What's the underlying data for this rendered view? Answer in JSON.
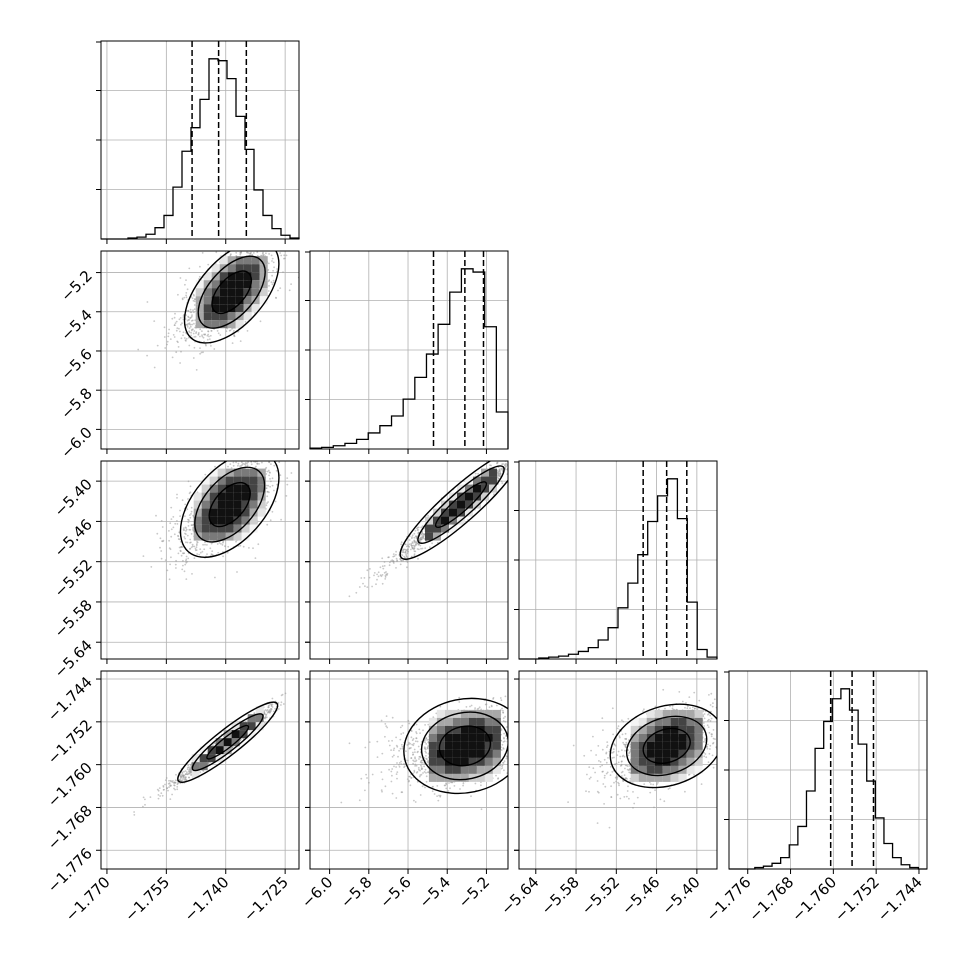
{
  "chart_data": {
    "type": "corner",
    "title": "",
    "grid": true,
    "colors": {
      "line": "#000000",
      "grid": "#b0b0b0",
      "scatter": "#9a9a9a"
    },
    "parameters": [
      {
        "index": 0,
        "range": [
          -1.7715,
          -1.7215
        ],
        "ticks": [
          -1.77,
          -1.755,
          -1.74,
          -1.725
        ],
        "tick_labels": [
          "−1.770",
          "−1.755",
          "−1.740",
          "−1.725"
        ],
        "quantiles": [
          -1.7485,
          -1.7418,
          -1.7348
        ],
        "histogram": [
          0,
          0,
          0,
          1,
          2,
          5,
          12,
          25,
          55,
          93,
          118,
          148,
          191,
          189,
          170,
          130,
          95,
          52,
          25,
          11,
          4,
          1
        ]
      },
      {
        "index": 1,
        "range": [
          -6.1,
          -5.09
        ],
        "ticks": [
          -6.0,
          -5.8,
          -5.6,
          -5.4,
          -5.2
        ],
        "tick_labels": [
          "−6.0",
          "−5.8",
          "−5.6",
          "−5.4",
          "−5.2"
        ],
        "quantiles": [
          -5.47,
          -5.31,
          -5.215
        ],
        "histogram": [
          1,
          2,
          4,
          7,
          12,
          20,
          29,
          41,
          62,
          89,
          118,
          155,
          195,
          224,
          220,
          152,
          46
        ]
      },
      {
        "index": 2,
        "range": [
          -5.665,
          -5.37
        ],
        "ticks": [
          -5.64,
          -5.58,
          -5.52,
          -5.46,
          -5.4
        ],
        "tick_labels": [
          "−5.64",
          "−5.58",
          "−5.52",
          "−5.46",
          "−5.40"
        ],
        "quantiles": [
          -5.48,
          -5.445,
          -5.415
        ],
        "histogram": [
          0,
          0,
          1,
          2,
          3,
          5,
          8,
          12,
          20,
          33,
          54,
          80,
          110,
          145,
          172,
          190,
          148,
          60,
          10,
          2
        ]
      },
      {
        "index": 3,
        "range": [
          -1.7795,
          -1.7425
        ],
        "ticks": [
          -1.776,
          -1.768,
          -1.76,
          -1.752,
          -1.744
        ],
        "tick_labels": [
          "−1.776",
          "−1.768",
          "−1.760",
          "−1.752",
          "−1.744"
        ],
        "quantiles": [
          -1.7605,
          -1.7565,
          -1.7525
        ],
        "histogram": [
          0,
          0,
          0,
          1,
          2,
          4,
          8,
          17,
          30,
          55,
          85,
          104,
          120,
          127,
          112,
          88,
          62,
          36,
          18,
          8,
          3,
          1,
          0
        ]
      }
    ],
    "pairs": [
      {
        "x_param": 0,
        "y_param": 1,
        "center": [
          -1.7385,
          -5.3
        ],
        "spread": [
          0.005,
          0.115
        ],
        "correlation": 0.6
      },
      {
        "x_param": 0,
        "y_param": 2,
        "center": [
          -1.739,
          -5.435
        ],
        "spread": [
          0.0052,
          0.035
        ],
        "correlation": 0.55
      },
      {
        "x_param": 1,
        "y_param": 2,
        "center": [
          -5.33,
          -5.435
        ],
        "spread": [
          0.135,
          0.035
        ],
        "correlation": 0.96
      },
      {
        "x_param": 0,
        "y_param": 3,
        "center": [
          -1.7395,
          -1.7558
        ],
        "spread": [
          0.0055,
          0.0032
        ],
        "correlation": 0.97
      },
      {
        "x_param": 1,
        "y_param": 3,
        "center": [
          -5.31,
          -1.7565
        ],
        "spread": [
          0.14,
          0.0036
        ],
        "correlation": 0.3
      },
      {
        "x_param": 2,
        "y_param": 3,
        "center": [
          -5.445,
          -1.7565
        ],
        "spread": [
          0.035,
          0.0036
        ],
        "correlation": 0.4
      }
    ]
  }
}
